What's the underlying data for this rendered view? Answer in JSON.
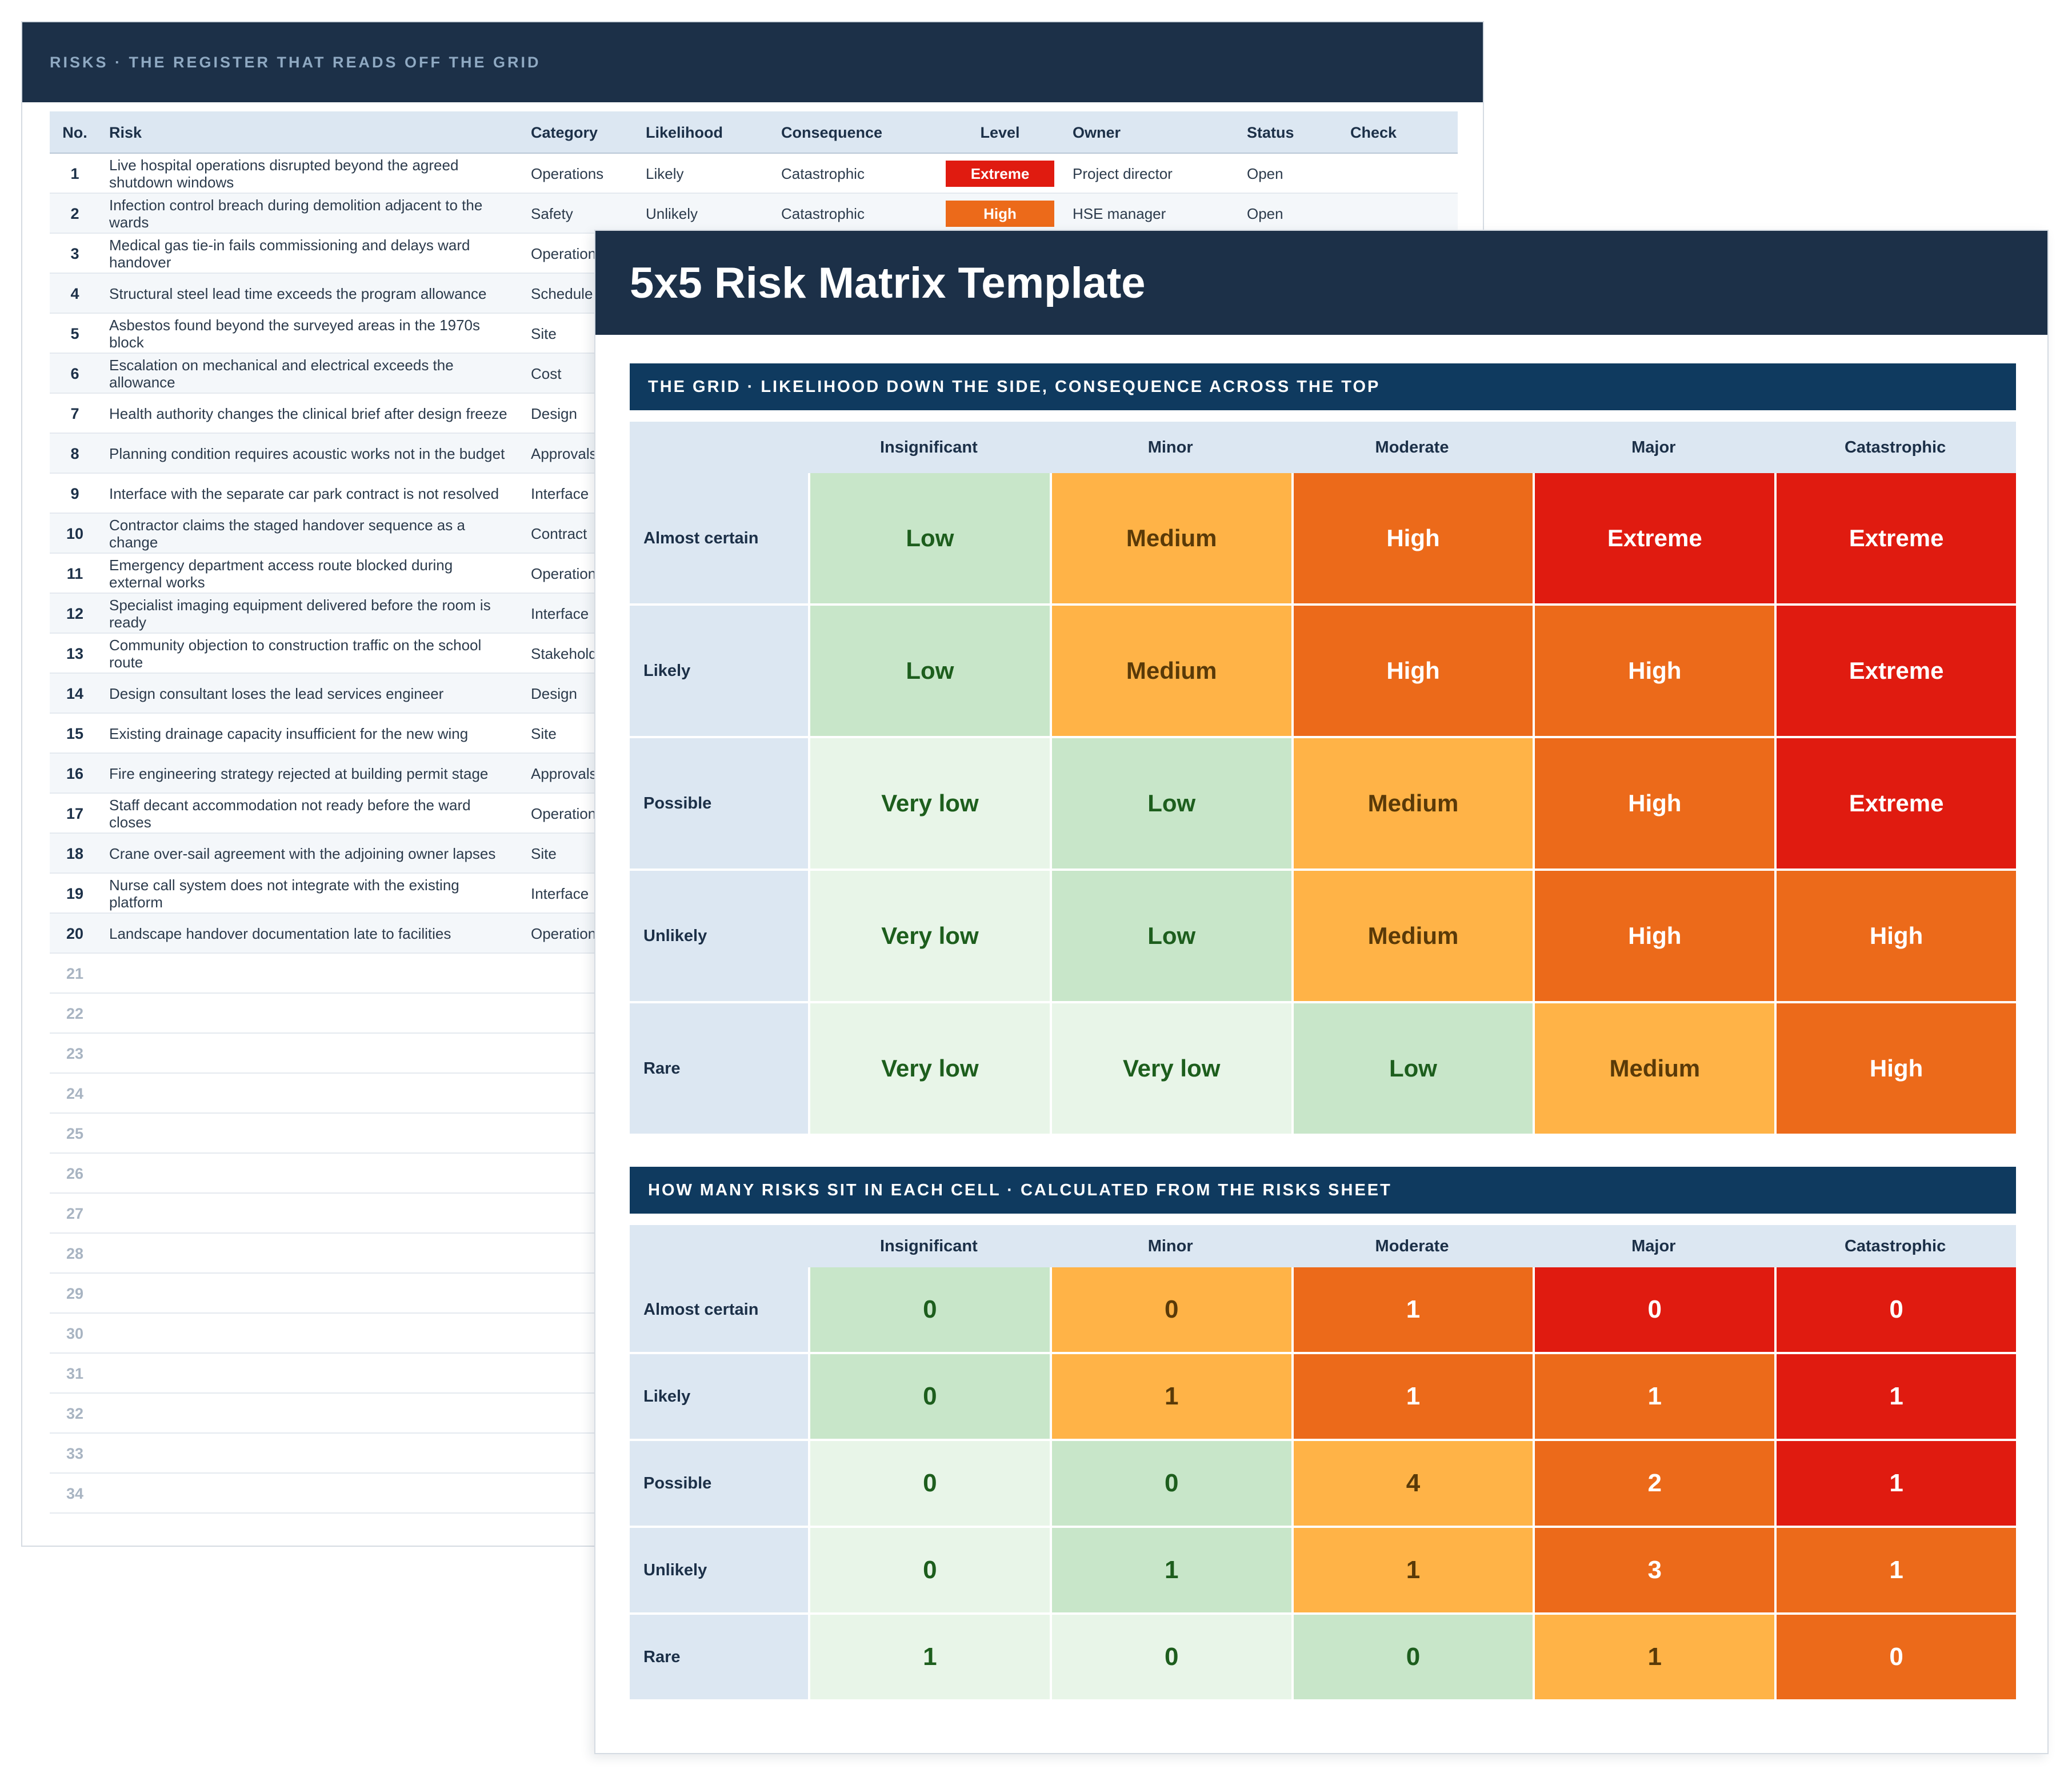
{
  "register": {
    "header": "RISKS  ·  THE REGISTER THAT READS OFF THE GRID",
    "columns": [
      "No.",
      "Risk",
      "Category",
      "Likelihood",
      "Consequence",
      "Level",
      "Owner",
      "Status",
      "Check"
    ],
    "rows": [
      {
        "no": "1",
        "risk": "Live hospital operations disrupted beyond the agreed shutdown windows",
        "category": "Operations",
        "likelihood": "Likely",
        "consequence": "Catastrophic",
        "level": "Extreme",
        "owner": "Project director",
        "status": "Open",
        "check": ""
      },
      {
        "no": "2",
        "risk": "Infection control breach during demolition adjacent to the wards",
        "category": "Safety",
        "likelihood": "Unlikely",
        "consequence": "Catastrophic",
        "level": "High",
        "owner": "HSE manager",
        "status": "Open",
        "check": ""
      },
      {
        "no": "3",
        "risk": "Medical gas tie-in fails commissioning and delays ward handover",
        "category": "Operation",
        "likelihood": "",
        "consequence": "",
        "level": "",
        "owner": "",
        "status": "",
        "check": ""
      },
      {
        "no": "4",
        "risk": "Structural steel lead time exceeds the program allowance",
        "category": "Schedule",
        "likelihood": "",
        "consequence": "",
        "level": "",
        "owner": "",
        "status": "",
        "check": ""
      },
      {
        "no": "5",
        "risk": "Asbestos found beyond the surveyed areas in the 1970s block",
        "category": "Site",
        "likelihood": "",
        "consequence": "",
        "level": "",
        "owner": "",
        "status": "",
        "check": ""
      },
      {
        "no": "6",
        "risk": "Escalation on mechanical and electrical exceeds the allowance",
        "category": "Cost",
        "likelihood": "",
        "consequence": "",
        "level": "",
        "owner": "",
        "status": "",
        "check": ""
      },
      {
        "no": "7",
        "risk": "Health authority changes the clinical brief after design freeze",
        "category": "Design",
        "likelihood": "",
        "consequence": "",
        "level": "",
        "owner": "",
        "status": "",
        "check": ""
      },
      {
        "no": "8",
        "risk": "Planning condition requires acoustic works not in the budget",
        "category": "Approvals",
        "likelihood": "",
        "consequence": "",
        "level": "",
        "owner": "",
        "status": "",
        "check": ""
      },
      {
        "no": "9",
        "risk": "Interface with the separate car park contract is not resolved",
        "category": "Interface",
        "likelihood": "",
        "consequence": "",
        "level": "",
        "owner": "",
        "status": "",
        "check": ""
      },
      {
        "no": "10",
        "risk": "Contractor claims the staged handover sequence as a change",
        "category": "Contract",
        "likelihood": "",
        "consequence": "",
        "level": "",
        "owner": "",
        "status": "",
        "check": ""
      },
      {
        "no": "11",
        "risk": "Emergency department access route blocked during external works",
        "category": "Operation",
        "likelihood": "",
        "consequence": "",
        "level": "",
        "owner": "",
        "status": "",
        "check": ""
      },
      {
        "no": "12",
        "risk": "Specialist imaging equipment delivered before the room is ready",
        "category": "Interface",
        "likelihood": "",
        "consequence": "",
        "level": "",
        "owner": "",
        "status": "",
        "check": ""
      },
      {
        "no": "13",
        "risk": "Community objection to construction traffic on the school route",
        "category": "Stakehold",
        "likelihood": "",
        "consequence": "",
        "level": "",
        "owner": "",
        "status": "",
        "check": ""
      },
      {
        "no": "14",
        "risk": "Design consultant loses the lead services engineer",
        "category": "Design",
        "likelihood": "",
        "consequence": "",
        "level": "",
        "owner": "",
        "status": "",
        "check": ""
      },
      {
        "no": "15",
        "risk": "Existing drainage capacity insufficient for the new wing",
        "category": "Site",
        "likelihood": "",
        "consequence": "",
        "level": "",
        "owner": "",
        "status": "",
        "check": ""
      },
      {
        "no": "16",
        "risk": "Fire engineering strategy rejected at building permit stage",
        "category": "Approvals",
        "likelihood": "",
        "consequence": "",
        "level": "",
        "owner": "",
        "status": "",
        "check": ""
      },
      {
        "no": "17",
        "risk": "Staff decant accommodation not ready before the ward closes",
        "category": "Operation",
        "likelihood": "",
        "consequence": "",
        "level": "",
        "owner": "",
        "status": "",
        "check": ""
      },
      {
        "no": "18",
        "risk": "Crane over-sail agreement with the adjoining owner lapses",
        "category": "Site",
        "likelihood": "",
        "consequence": "",
        "level": "",
        "owner": "",
        "status": "",
        "check": ""
      },
      {
        "no": "19",
        "risk": "Nurse call system does not integrate with the existing platform",
        "category": "Interface",
        "likelihood": "",
        "consequence": "",
        "level": "",
        "owner": "",
        "status": "",
        "check": ""
      },
      {
        "no": "20",
        "risk": "Landscape handover documentation late to facilities",
        "category": "Operation",
        "likelihood": "",
        "consequence": "",
        "level": "",
        "owner": "",
        "status": "",
        "check": ""
      }
    ],
    "empty_rows": [
      "21",
      "22",
      "23",
      "24",
      "25",
      "26",
      "27",
      "28",
      "29",
      "30",
      "31",
      "32",
      "33",
      "34"
    ]
  },
  "matrix": {
    "title": "5x5 Risk Matrix Template",
    "grid_section": "THE GRID  ·  LIKELIHOOD DOWN THE SIDE, CONSEQUENCE ACROSS THE TOP",
    "count_section": "HOW MANY RISKS SIT IN EACH CELL  ·  CALCULATED FROM THE RISKS SHEET",
    "consequences": [
      "Insignificant",
      "Minor",
      "Moderate",
      "Major",
      "Catastrophic"
    ],
    "likelihoods": [
      "Almost certain",
      "Likely",
      "Possible",
      "Unlikely",
      "Rare"
    ],
    "levels": [
      [
        "Low",
        "Medium",
        "High",
        "Extreme",
        "Extreme"
      ],
      [
        "Low",
        "Medium",
        "High",
        "High",
        "Extreme"
      ],
      [
        "Very low",
        "Low",
        "Medium",
        "High",
        "Extreme"
      ],
      [
        "Very low",
        "Low",
        "Medium",
        "High",
        "High"
      ],
      [
        "Very low",
        "Very low",
        "Low",
        "Medium",
        "High"
      ]
    ],
    "counts": [
      [
        "0",
        "0",
        "1",
        "0",
        "0"
      ],
      [
        "0",
        "1",
        "1",
        "1",
        "1"
      ],
      [
        "0",
        "0",
        "4",
        "2",
        "1"
      ],
      [
        "0",
        "1",
        "1",
        "3",
        "1"
      ],
      [
        "1",
        "0",
        "0",
        "1",
        "0"
      ]
    ]
  },
  "level_colors": {
    "Very low": {
      "bg": "#e8f5e8",
      "fg": "#1d5e1d"
    },
    "Low": {
      "bg": "#c8e6c9",
      "fg": "#1d5e1d"
    },
    "Medium": {
      "bg": "#ffb347",
      "fg": "#5a3a08"
    },
    "High": {
      "bg": "#ec6a1a",
      "fg": "#ffffff"
    },
    "Extreme": {
      "bg": "#e01b10",
      "fg": "#ffffff"
    }
  }
}
